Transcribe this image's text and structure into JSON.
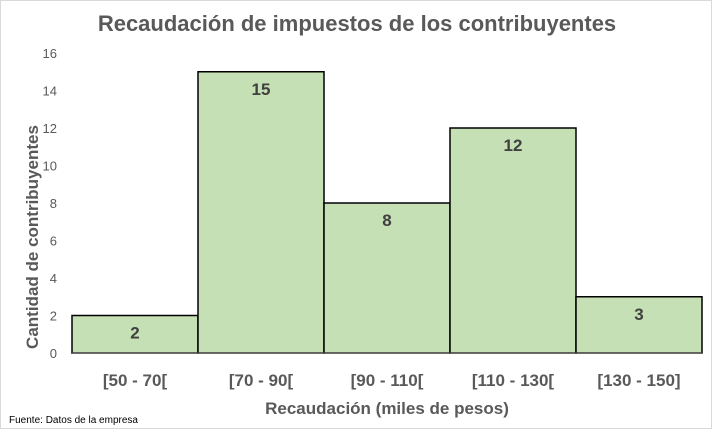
{
  "chart_data": {
    "type": "bar",
    "title": "Recaudación de impuestos de los contribuyentes",
    "xlabel": "Recaudación (miles de pesos)",
    "ylabel": "Cantidad de contribuyentes",
    "categories": [
      "[50 - 70[",
      "[70 - 90[",
      "[90 - 110[",
      "[110 - 130[",
      "[130 - 150]"
    ],
    "values": [
      2,
      15,
      8,
      12,
      3
    ],
    "ylim": [
      0,
      16
    ],
    "yticks": [
      "0",
      "2",
      "4",
      "6",
      "8",
      "10",
      "12",
      "14",
      "16"
    ],
    "grid": false,
    "bar_color": "#c5e0b4",
    "bar_border_color": "#000000",
    "data_labels": [
      "2",
      "15",
      "8",
      "12",
      "3"
    ]
  },
  "source_note": "Fuente: Datos de la empresa"
}
